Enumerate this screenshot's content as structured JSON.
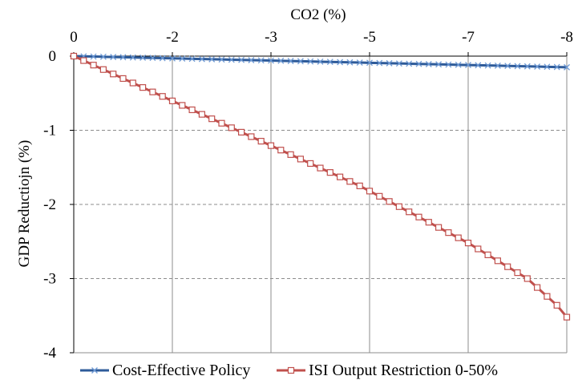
{
  "chart_data": {
    "type": "line",
    "xlabel": "CO2 (%)",
    "ylabel": "GDP Reductiojn (%)",
    "x_ticks": [
      "0",
      "-2",
      "-3",
      "-5",
      "-7",
      "-8"
    ],
    "y_ticks": [
      "0",
      "-1",
      "-2",
      "-3",
      "-4"
    ],
    "xlim": [
      0,
      50
    ],
    "ylim": [
      -4,
      0
    ],
    "grid": {
      "vertical": "solid",
      "horizontal": "dashed"
    },
    "legend_position": "bottom",
    "x": [
      0,
      1,
      2,
      3,
      4,
      5,
      6,
      7,
      8,
      9,
      10,
      11,
      12,
      13,
      14,
      15,
      16,
      17,
      18,
      19,
      20,
      21,
      22,
      23,
      24,
      25,
      26,
      27,
      28,
      29,
      30,
      31,
      32,
      33,
      34,
      35,
      36,
      37,
      38,
      39,
      40,
      41,
      42,
      43,
      44,
      45,
      46,
      47,
      48,
      49,
      50
    ],
    "series": [
      {
        "name": "Cost-Effective Policy",
        "color": "#2e5b9a",
        "marker": "x",
        "values": [
          0,
          -0.003,
          -0.006,
          -0.009,
          -0.012,
          -0.015,
          -0.018,
          -0.021,
          -0.024,
          -0.027,
          -0.03,
          -0.033,
          -0.036,
          -0.039,
          -0.042,
          -0.045,
          -0.048,
          -0.051,
          -0.054,
          -0.057,
          -0.06,
          -0.063,
          -0.066,
          -0.069,
          -0.072,
          -0.075,
          -0.078,
          -0.081,
          -0.084,
          -0.087,
          -0.09,
          -0.093,
          -0.096,
          -0.099,
          -0.102,
          -0.105,
          -0.108,
          -0.111,
          -0.114,
          -0.117,
          -0.12,
          -0.123,
          -0.126,
          -0.129,
          -0.132,
          -0.135,
          -0.138,
          -0.141,
          -0.144,
          -0.147,
          -0.15
        ]
      },
      {
        "name": "ISI Output Restriction 0-50%",
        "color": "#c0504d",
        "marker": "square",
        "values": [
          0,
          -0.06,
          -0.121,
          -0.181,
          -0.241,
          -0.302,
          -0.362,
          -0.423,
          -0.483,
          -0.543,
          -0.604,
          -0.664,
          -0.724,
          -0.785,
          -0.845,
          -0.905,
          -0.966,
          -1.026,
          -1.086,
          -1.147,
          -1.207,
          -1.267,
          -1.328,
          -1.388,
          -1.448,
          -1.509,
          -1.569,
          -1.629,
          -1.69,
          -1.75,
          -1.82,
          -1.89,
          -1.96,
          -2.03,
          -2.1,
          -2.17,
          -2.24,
          -2.31,
          -2.38,
          -2.45,
          -2.52,
          -2.6,
          -2.68,
          -2.76,
          -2.84,
          -2.92,
          -3.0,
          -3.12,
          -3.24,
          -3.36,
          -3.52
        ]
      }
    ]
  }
}
